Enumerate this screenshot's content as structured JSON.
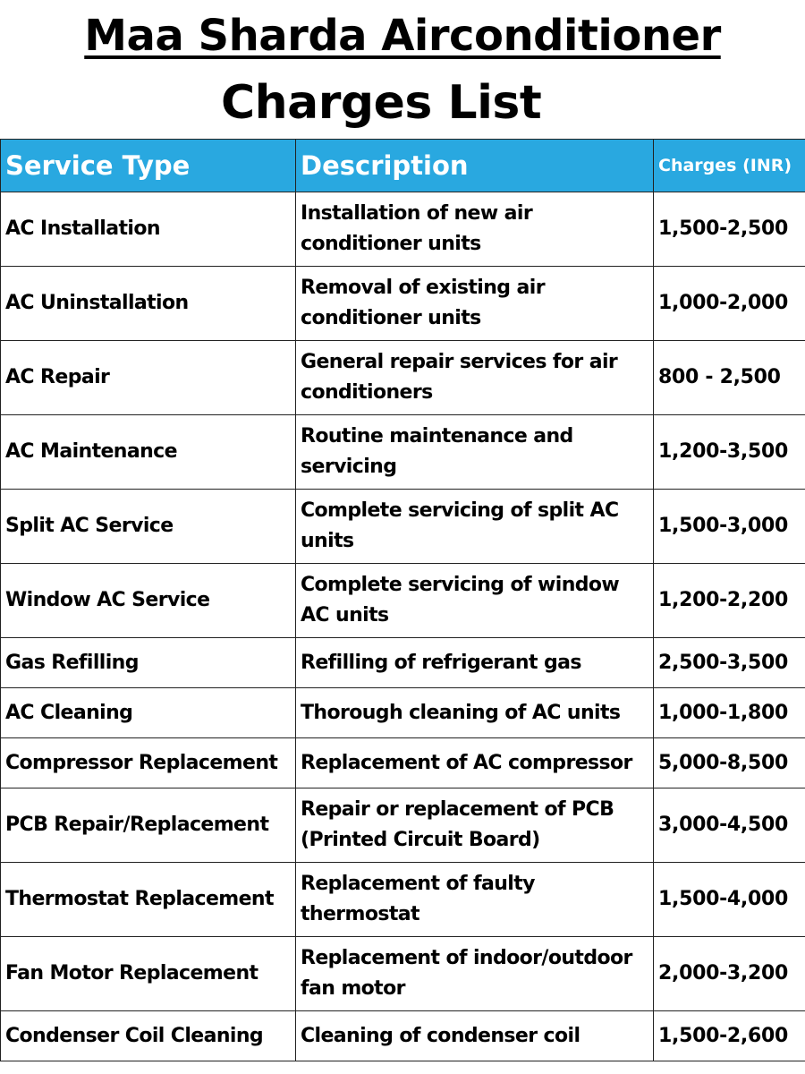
{
  "title": {
    "line1": "Maa Sharda Airconditioner",
    "line2": "Charges List"
  },
  "table": {
    "headers": {
      "service": "Service Type",
      "description": "Description",
      "charges": "Charges (INR)"
    },
    "rows": [
      {
        "service": "AC Installation",
        "description": "Installation of new air conditioner units",
        "charges": "1,500-2,500"
      },
      {
        "service": "AC Uninstallation",
        "description": "Removal of existing air conditioner units",
        "charges": "1,000-2,000"
      },
      {
        "service": "AC Repair",
        "description": "General repair services for air conditioners",
        "charges": "800 - 2,500"
      },
      {
        "service": "AC Maintenance",
        "description": "Routine maintenance and servicing",
        "charges": "1,200-3,500"
      },
      {
        "service": "Split AC Service",
        "description": "Complete servicing of split AC units",
        "charges": "1,500-3,000"
      },
      {
        "service": "Window AC Service",
        "description": "Complete servicing of window AC units",
        "charges": "1,200-2,200"
      },
      {
        "service": "Gas Refilling",
        "description": "Refilling of refrigerant gas",
        "charges": "2,500-3,500"
      },
      {
        "service": "AC Cleaning",
        "description": "Thorough cleaning of AC units",
        "charges": "1,000-1,800"
      },
      {
        "service": "Compressor Replacement",
        "description": "Replacement of AC compressor",
        "charges": "5,000-8,500"
      },
      {
        "service": "PCB Repair/Replacement",
        "description": "Repair or replacement of PCB (Printed Circuit Board)",
        "charges": "3,000-4,500"
      },
      {
        "service": "Thermostat Replacement",
        "description": "Replacement of faulty thermostat",
        "charges": "1,500-4,000"
      },
      {
        "service": "Fan Motor Replacement",
        "description": "Replacement of indoor/outdoor fan motor",
        "charges": "2,000-3,200"
      },
      {
        "service": "Condenser Coil Cleaning",
        "description": "Cleaning of condenser coil",
        "charges": "1,500-2,600"
      }
    ]
  },
  "colors": {
    "header_background": "#29a8e0",
    "header_text": "#ffffff",
    "body_text": "#000000",
    "border": "#222222"
  }
}
